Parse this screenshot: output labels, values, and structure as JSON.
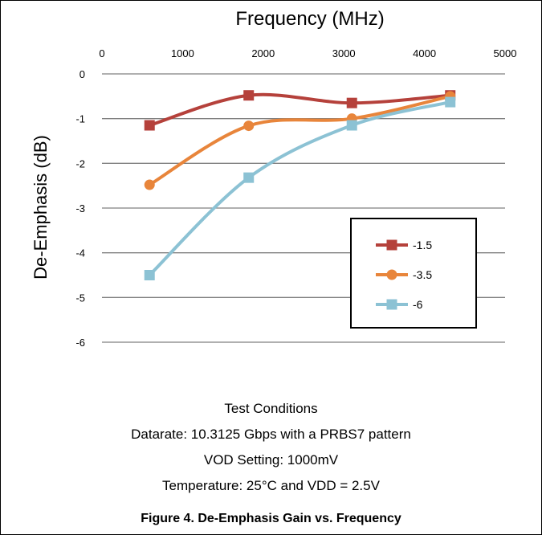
{
  "chart_data": {
    "type": "line",
    "title": "Frequency (MHz)",
    "ylabel": "De-Emphasis (dB)",
    "xlim": [
      0,
      5000
    ],
    "ylim": [
      -6,
      0
    ],
    "x_ticks": [
      0,
      1000,
      2000,
      3000,
      4000,
      5000
    ],
    "y_ticks": [
      0,
      -1,
      -2,
      -3,
      -4,
      -5,
      -6
    ],
    "x_axis_position": "top",
    "grid": "horizontal",
    "legend_position": "right-inside",
    "x": [
      590,
      1820,
      3100,
      4320
    ],
    "series": [
      {
        "name": "-1.5",
        "marker": "square",
        "color": "#b5413b",
        "values": [
          -1.15,
          -0.48,
          -0.65,
          -0.48
        ]
      },
      {
        "name": "-3.5",
        "marker": "circle",
        "color": "#e8853b",
        "values": [
          -2.48,
          -1.16,
          -1.0,
          -0.5
        ]
      },
      {
        "name": "-6",
        "marker": "square",
        "color": "#8cc2d4",
        "values": [
          -4.5,
          -2.32,
          -1.15,
          -0.63
        ]
      }
    ]
  },
  "notes": {
    "heading": "Test Conditions",
    "line1": "Datarate: 10.3125 Gbps with a PRBS7 pattern",
    "line2": "VOD Setting: 1000mV",
    "line3": "Temperature: 25°C and VDD = 2.5V"
  },
  "caption": "Figure 4. De-Emphasis Gain vs. Frequency"
}
